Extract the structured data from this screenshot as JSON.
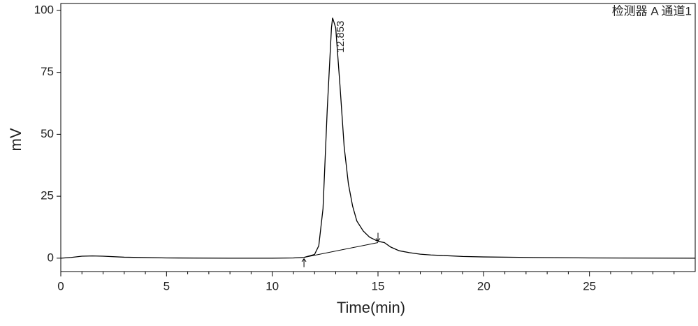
{
  "chart_data": {
    "type": "line",
    "detector_label": "检测器 A 通道1",
    "xlabel": "Time(min)",
    "ylabel": "mV",
    "color": "#000000",
    "x": [
      0,
      0.5,
      1,
      1.5,
      2,
      3,
      5,
      8,
      10,
      11,
      11.5,
      12,
      12.2,
      12.4,
      12.6,
      12.8,
      12.853,
      13.0,
      13.2,
      13.4,
      13.6,
      13.8,
      14.0,
      14.3,
      14.6,
      15.0,
      15.3,
      15.6,
      16,
      16.5,
      17,
      17.5,
      18,
      19,
      20,
      22,
      25,
      30
    ],
    "values": [
      0,
      0.3,
      0.8,
      0.9,
      0.8,
      0.4,
      0.1,
      0,
      0,
      0.1,
      0.3,
      1.5,
      5,
      20,
      60,
      93,
      97,
      93,
      70,
      45,
      30,
      21,
      15,
      11,
      8.5,
      6.8,
      6.3,
      4.5,
      3,
      2.2,
      1.6,
      1.3,
      1.1,
      0.7,
      0.5,
      0.3,
      0.1,
      0
    ],
    "integration_baseline": {
      "x": [
        11.5,
        15.0
      ],
      "values": [
        0.3,
        6.3
      ]
    },
    "annotations": [
      {
        "text": "12.853",
        "x": 12.853,
        "y": 97
      }
    ],
    "xlim": [
      0,
      30
    ],
    "ylim": [
      -5.4,
      102.8
    ],
    "xticks": [
      0,
      5,
      10,
      15,
      20,
      25
    ],
    "x_minor_ticks": [
      1,
      2,
      3,
      4,
      6,
      7,
      8,
      9,
      11,
      12,
      13,
      14,
      16,
      17,
      18,
      19,
      21,
      22,
      23,
      24,
      26,
      27,
      28,
      29
    ],
    "yticks": [
      0,
      25,
      50,
      75,
      100
    ]
  }
}
